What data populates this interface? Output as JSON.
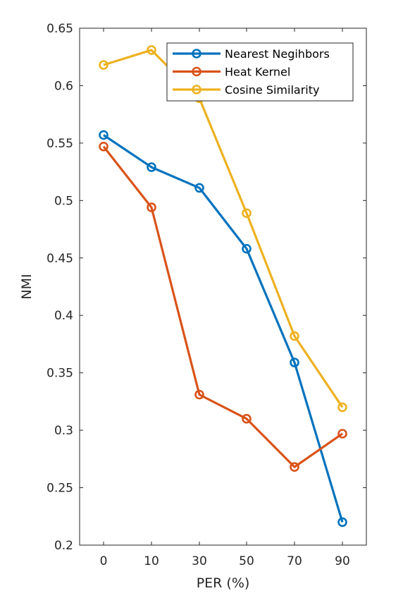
{
  "chart_data": {
    "type": "line",
    "title": "",
    "xlabel": "PER (%)",
    "ylabel": "NMI",
    "categories": [
      "0",
      "10",
      "30",
      "50",
      "70",
      "90"
    ],
    "ylim": [
      0.2,
      0.65
    ],
    "yticks": [
      "0.2",
      "0.25",
      "0.3",
      "0.35",
      "0.4",
      "0.45",
      "0.5",
      "0.55",
      "0.6",
      "0.65"
    ],
    "grid": false,
    "legend_position": "top-right",
    "series": [
      {
        "name": "Nearest Negihbors",
        "color": "#0072BD",
        "values": [
          0.557,
          0.529,
          0.511,
          0.458,
          0.359,
          0.22
        ]
      },
      {
        "name": "Heat Kernel",
        "color": "#D95319",
        "values": [
          0.547,
          0.494,
          0.331,
          0.31,
          0.268,
          0.297
        ]
      },
      {
        "name": "Cosine Similarity",
        "color": "#EDB120",
        "values": [
          0.618,
          0.631,
          0.589,
          0.489,
          0.382,
          0.32
        ]
      }
    ]
  }
}
